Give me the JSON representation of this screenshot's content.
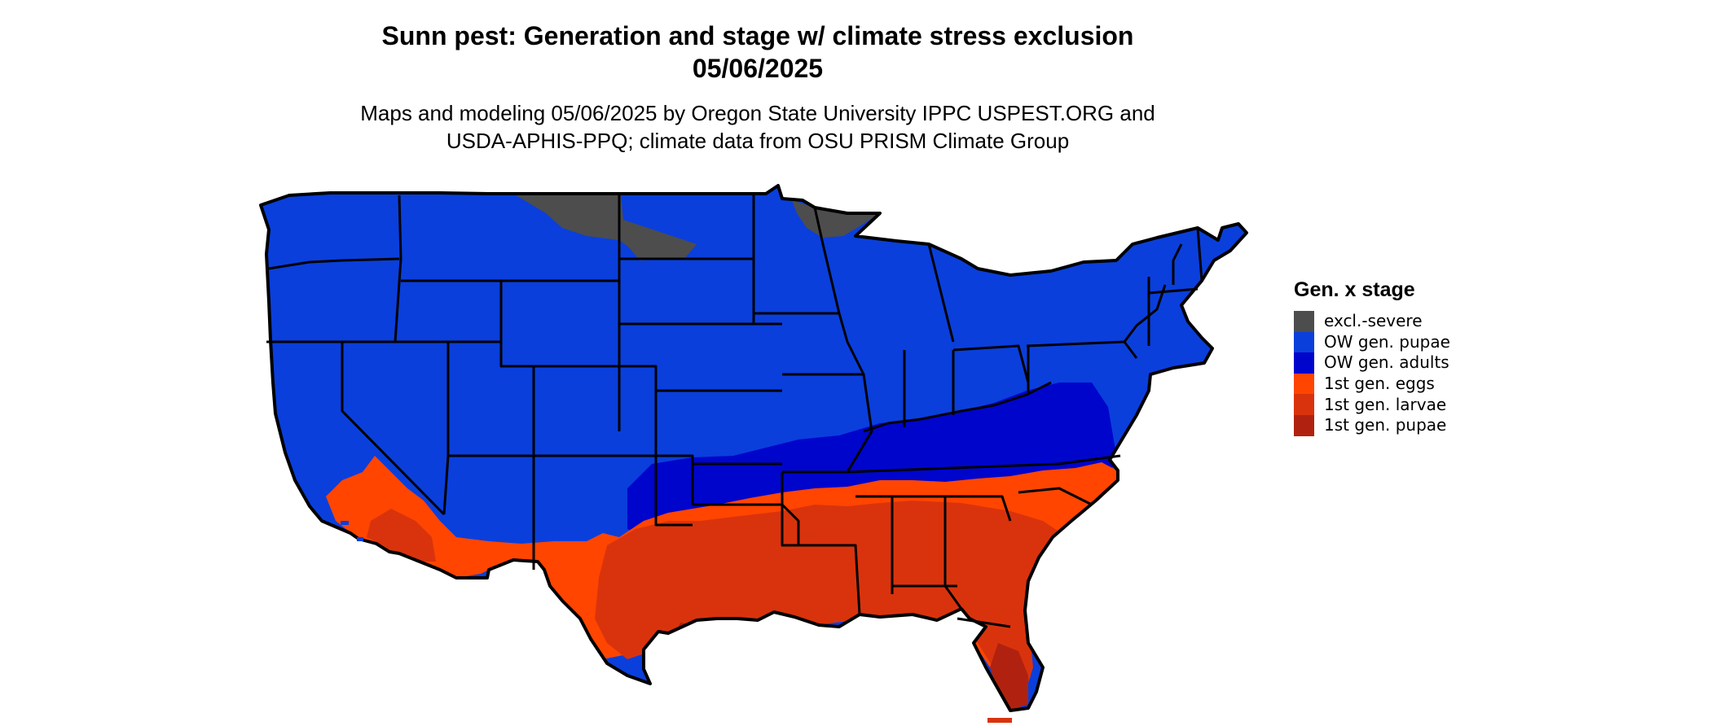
{
  "title": {
    "line1": "Sunn pest: Generation and stage w/ climate stress exclusion",
    "line2": "05/06/2025"
  },
  "subtitle": {
    "line1": "Maps and modeling 05/06/2025 by Oregon State University IPPC USPEST.ORG and",
    "line2": "USDA-APHIS-PPQ; climate data from OSU PRISM Climate Group"
  },
  "legend": {
    "title": "Gen. x stage",
    "items": [
      {
        "label": "excl.-severe",
        "color": "#4d4d4d"
      },
      {
        "label": "OW gen. pupae",
        "color": "#0a3fdc"
      },
      {
        "label": "OW gen. adults",
        "color": "#0005cc"
      },
      {
        "label": "1st gen. eggs",
        "color": "#ff4500"
      },
      {
        "label": "1st gen. larvae",
        "color": "#d9330d"
      },
      {
        "label": "1st gen. pupae",
        "color": "#b0220f"
      }
    ]
  },
  "map": {
    "region": "contiguous-united-states",
    "boundary_color": "#000000",
    "background_color": "#ffffff"
  }
}
